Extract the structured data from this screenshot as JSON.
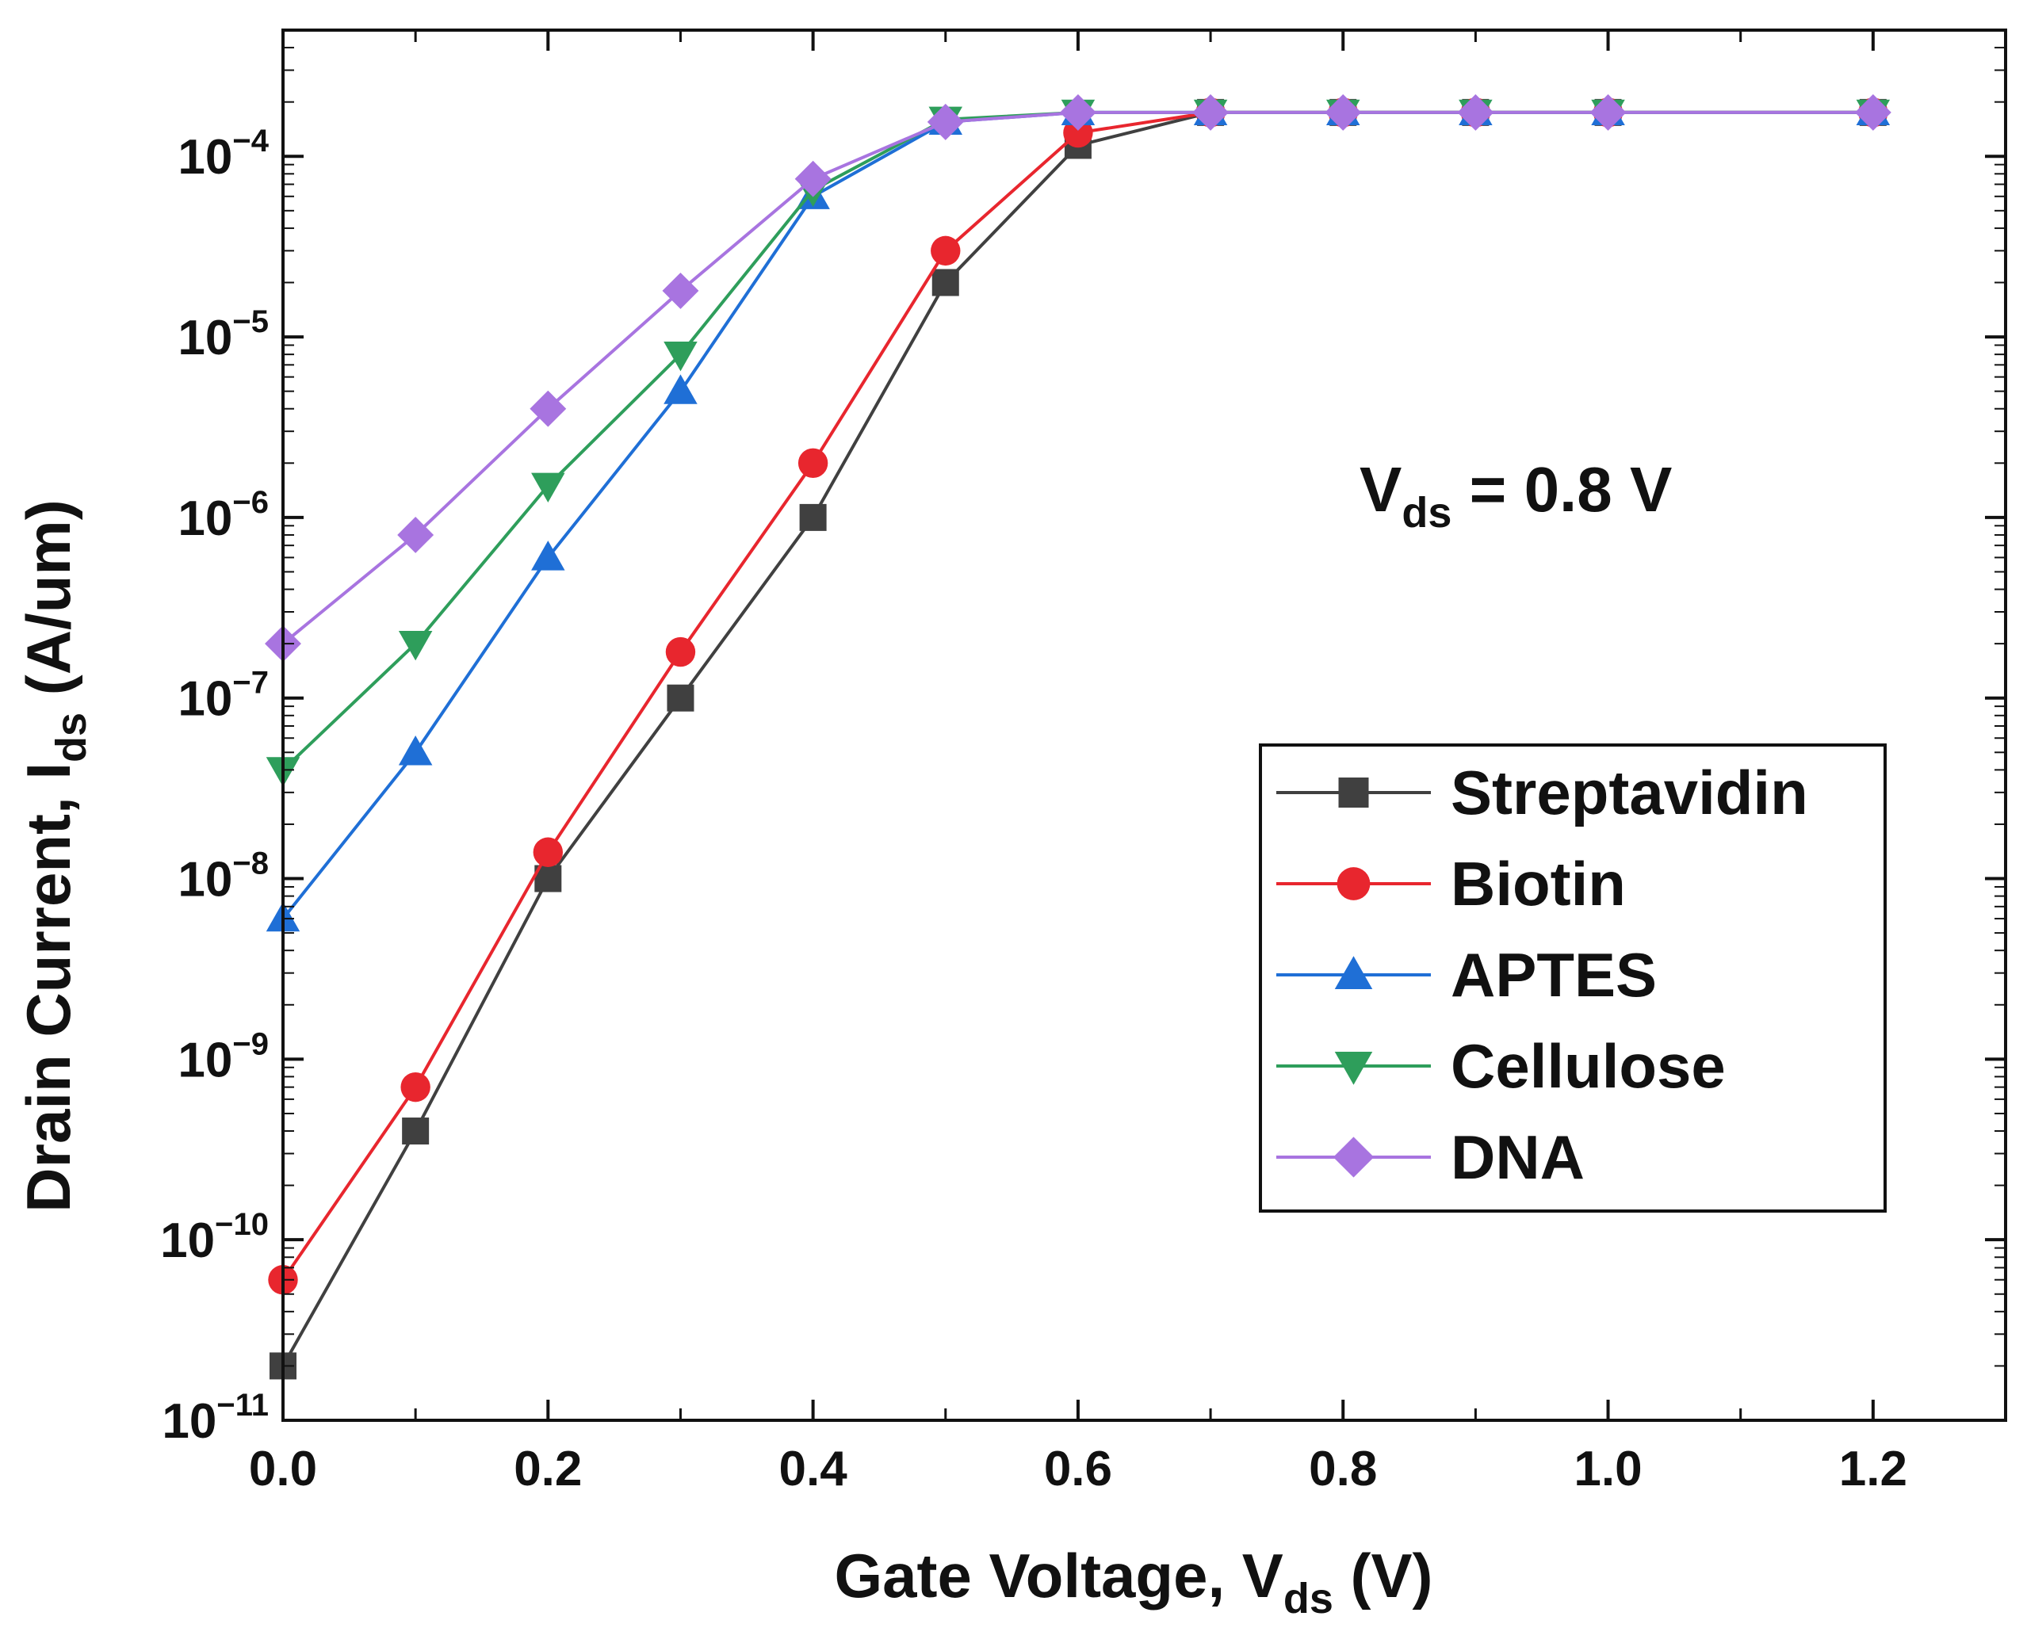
{
  "chart_data": {
    "type": "line",
    "title": "",
    "xlabel": {
      "main": "Gate Voltage, V",
      "sub": "ds",
      "suffix": " (V)"
    },
    "ylabel": {
      "main": "Drain Current, I",
      "sub": "ds",
      "suffix": " (A/um)"
    },
    "annotation": {
      "main": "V",
      "sub": "ds",
      "suffix": " = 0.8 V"
    },
    "xscale": "linear",
    "yscale": "log",
    "xlim": [
      0.0,
      1.3
    ],
    "ylim": [
      1e-11,
      0.0005
    ],
    "x": [
      0.0,
      0.1,
      0.2,
      0.3,
      0.4,
      0.5,
      0.6,
      0.7,
      0.8,
      0.9,
      1.0,
      1.2
    ],
    "xticks": [
      {
        "value": 0.0,
        "label": "0.0"
      },
      {
        "value": 0.2,
        "label": "0.2"
      },
      {
        "value": 0.4,
        "label": "0.4"
      },
      {
        "value": 0.6,
        "label": "0.6"
      },
      {
        "value": 0.8,
        "label": "0.8"
      },
      {
        "value": 1.0,
        "label": "1.0"
      },
      {
        "value": 1.2,
        "label": "1.2"
      }
    ],
    "xminor_ticks": [
      0.1,
      0.3,
      0.5,
      0.7,
      0.9,
      1.1,
      1.3
    ],
    "yticks": [
      {
        "value": 1e-11,
        "base": "10",
        "exp": "−11"
      },
      {
        "value": 1e-10,
        "base": "10",
        "exp": "−10"
      },
      {
        "value": 1e-09,
        "base": "10",
        "exp": "−9"
      },
      {
        "value": 1e-08,
        "base": "10",
        "exp": "−8"
      },
      {
        "value": 1e-07,
        "base": "10",
        "exp": "−7"
      },
      {
        "value": 1e-06,
        "base": "10",
        "exp": "−6"
      },
      {
        "value": 1e-05,
        "base": "10",
        "exp": "−5"
      },
      {
        "value": 0.0001,
        "base": "10",
        "exp": "−4"
      }
    ],
    "legend_position": "center-right",
    "series": [
      {
        "name": "Streptavidin",
        "color": "#404040",
        "marker": "square",
        "values": [
          2e-11,
          4e-10,
          1e-08,
          1e-07,
          1e-06,
          2e-05,
          0.000115,
          0.000175,
          0.000175,
          0.000175,
          0.000175,
          0.000175
        ]
      },
      {
        "name": "Biotin",
        "color": "#e8262e",
        "marker": "circle",
        "values": [
          6e-11,
          7e-10,
          1.4e-08,
          1.8e-07,
          2e-06,
          3e-05,
          0.000135,
          0.000175,
          0.000175,
          0.000175,
          0.000175,
          0.000175
        ]
      },
      {
        "name": "APTES",
        "color": "#1f6fd6",
        "marker": "triangle-up",
        "values": [
          6e-09,
          5e-08,
          6e-07,
          5e-06,
          6e-05,
          0.000155,
          0.000175,
          0.000175,
          0.000175,
          0.000175,
          0.000175,
          0.000175
        ]
      },
      {
        "name": "Cellulose",
        "color": "#2e9e5b",
        "marker": "triangle-down",
        "values": [
          4e-08,
          2e-07,
          1.5e-06,
          8e-06,
          6.5e-05,
          0.00016,
          0.000175,
          0.000175,
          0.000175,
          0.000175,
          0.000175,
          0.000175
        ]
      },
      {
        "name": "DNA",
        "color": "#a874e0",
        "marker": "diamond",
        "values": [
          2e-07,
          8e-07,
          4e-06,
          1.8e-05,
          7.5e-05,
          0.000155,
          0.000175,
          0.000175,
          0.000175,
          0.000175,
          0.000175,
          0.000175
        ]
      }
    ]
  }
}
